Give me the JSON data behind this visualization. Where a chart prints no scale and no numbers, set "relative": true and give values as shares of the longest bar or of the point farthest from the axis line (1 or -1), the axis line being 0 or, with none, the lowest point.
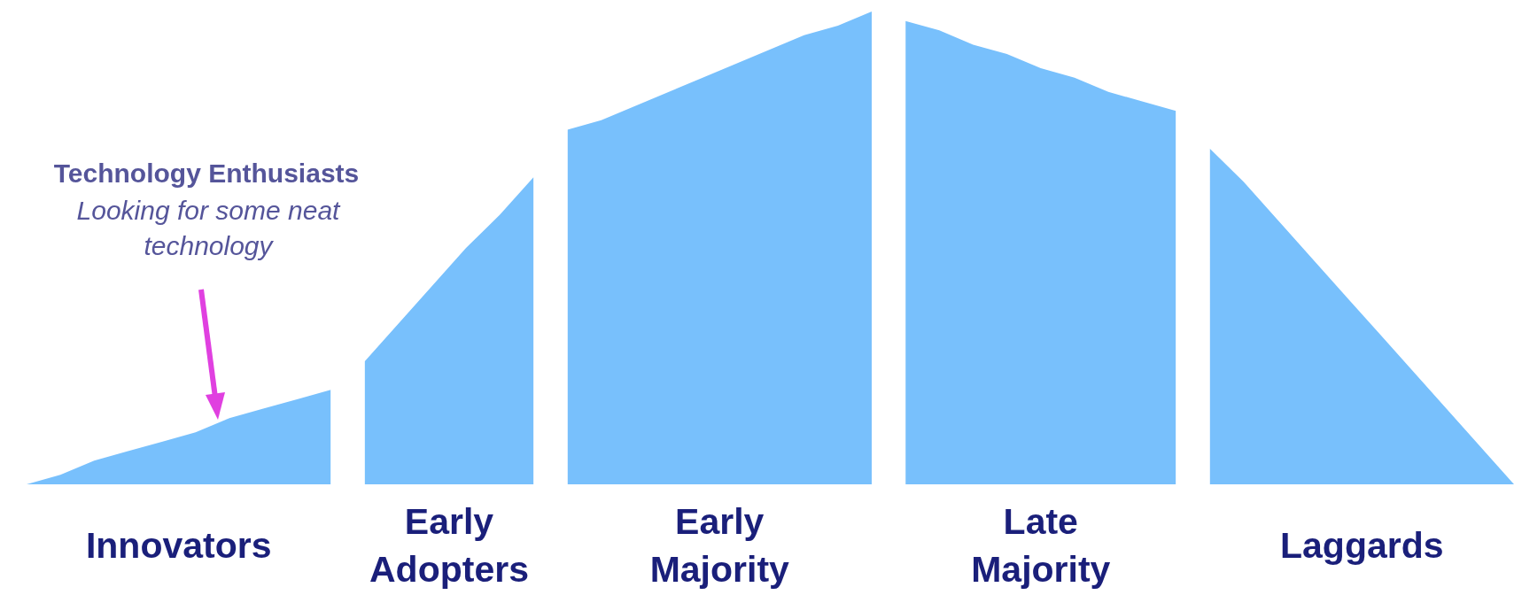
{
  "chart_data": {
    "type": "area",
    "relative": true,
    "legend": false,
    "grid": false,
    "categories": [
      null,
      null,
      null,
      null,
      null,
      null,
      null,
      null,
      null,
      null,
      null,
      null,
      null,
      null,
      null,
      null,
      null,
      null,
      null,
      null,
      null,
      null,
      null,
      null,
      null,
      null,
      null,
      null,
      null,
      null,
      null,
      null,
      null,
      null,
      null,
      null,
      null,
      null,
      null,
      null,
      null,
      null,
      null,
      null,
      null
    ],
    "series": [
      {
        "name": "Innovators",
        "color": "#78c0fc",
        "values": [
          0,
          0.02,
          0.05,
          0.07,
          0.09,
          0.11,
          0.14,
          0.16,
          0.18,
          0.2,
          null,
          null,
          null,
          null,
          null,
          null,
          null,
          null,
          null,
          null,
          null,
          null,
          null,
          null,
          null,
          null,
          null,
          null,
          null,
          null,
          null,
          null,
          null,
          null,
          null,
          null,
          null,
          null,
          null,
          null,
          null,
          null,
          null,
          null,
          null
        ]
      },
      {
        "name": "Early Adopters",
        "color": "#78c0fc",
        "values": [
          null,
          null,
          null,
          null,
          null,
          null,
          null,
          null,
          null,
          null,
          0.26,
          0.34,
          0.42,
          0.5,
          0.57,
          0.65,
          null,
          null,
          null,
          null,
          null,
          null,
          null,
          null,
          null,
          null,
          null,
          null,
          null,
          null,
          null,
          null,
          null,
          null,
          null,
          null,
          null,
          null,
          null,
          null,
          null,
          null,
          null,
          null,
          null
        ]
      },
      {
        "name": "Early Majority",
        "color": "#78c0fc",
        "values": [
          null,
          null,
          null,
          null,
          null,
          null,
          null,
          null,
          null,
          null,
          null,
          null,
          null,
          null,
          null,
          null,
          0.75,
          0.77,
          0.8,
          0.83,
          0.86,
          0.89,
          0.92,
          0.95,
          0.97,
          1,
          null,
          null,
          null,
          null,
          null,
          null,
          null,
          null,
          null,
          null,
          null,
          null,
          null,
          null,
          null,
          null,
          null,
          null,
          null
        ]
      },
      {
        "name": "Late Majority",
        "color": "#78c0fc",
        "values": [
          null,
          null,
          null,
          null,
          null,
          null,
          null,
          null,
          null,
          null,
          null,
          null,
          null,
          null,
          null,
          null,
          null,
          null,
          null,
          null,
          null,
          null,
          null,
          null,
          null,
          null,
          0.98,
          0.96,
          0.93,
          0.91,
          0.88,
          0.86,
          0.83,
          0.81,
          0.79,
          null,
          null,
          null,
          null,
          null,
          null,
          null,
          null,
          null,
          null
        ]
      },
      {
        "name": "Laggards",
        "color": "#78c0fc",
        "values": [
          null,
          null,
          null,
          null,
          null,
          null,
          null,
          null,
          null,
          null,
          null,
          null,
          null,
          null,
          null,
          null,
          null,
          null,
          null,
          null,
          null,
          null,
          null,
          null,
          null,
          null,
          null,
          null,
          null,
          null,
          null,
          null,
          null,
          null,
          null,
          0.71,
          0.64,
          0.56,
          0.48,
          0.4,
          0.32,
          0.24,
          0.16,
          0.08,
          0
        ]
      }
    ],
    "annotations": [
      "Technology Enthusiasts",
      "Looking for some neat technology"
    ]
  }
}
